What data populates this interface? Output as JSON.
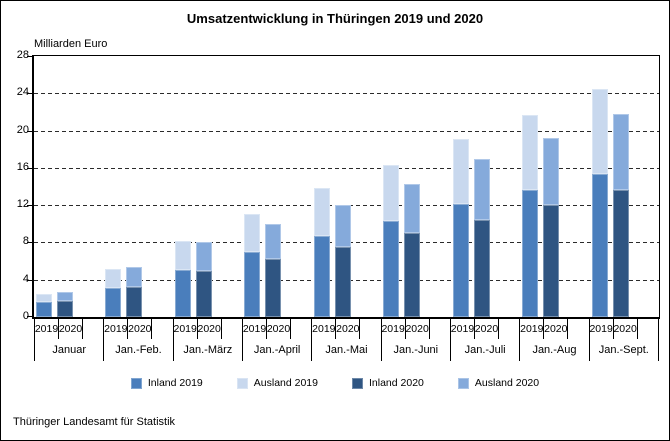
{
  "title": "Umsatzentwicklung in Thüringen 2019 und 2020",
  "footer": "Thüringer Landesamt für Statistik",
  "chart_data": {
    "type": "bar",
    "stacked": true,
    "grouped": true,
    "title": "Umsatzentwicklung in Thüringen 2019 und 2020",
    "ylabel": "Milliarden Euro",
    "ylim": [
      0,
      28
    ],
    "ytick_step": 4,
    "grid": "horizontal-dashed",
    "legend_position": "bottom",
    "categories": [
      "Januar",
      "Jan.-Feb.",
      "Jan.-März",
      "Jan.-April",
      "Jan.-Mai",
      "Jan.-Juni",
      "Jan.-Juli",
      "Jan.-Aug",
      "Jan.-Sept."
    ],
    "bar_labels": [
      "2019",
      "2020"
    ],
    "series": [
      {
        "name": "Inland 2019",
        "bar": "2019",
        "stack_order": "bottom",
        "color": "#4a7ebc",
        "values": [
          1.6,
          3.2,
          5.1,
          6.9,
          8.6,
          10.3,
          12.1,
          13.7,
          15.4
        ]
      },
      {
        "name": "Ausland 2019",
        "bar": "2019",
        "stack_order": "top",
        "color": "#c8d8ee",
        "values": [
          0.9,
          2.0,
          3.1,
          4.1,
          5.2,
          6.0,
          7.0,
          8.0,
          9.1
        ]
      },
      {
        "name": "Inland 2020",
        "bar": "2020",
        "stack_order": "bottom",
        "color": "#2f5582",
        "values": [
          1.7,
          3.3,
          4.9,
          6.2,
          7.5,
          9.0,
          10.5,
          12.0,
          13.6
        ]
      },
      {
        "name": "Ausland 2020",
        "bar": "2020",
        "stack_order": "top",
        "color": "#85aadb",
        "values": [
          1.0,
          2.1,
          3.1,
          3.8,
          4.5,
          5.3,
          6.5,
          7.2,
          8.2
        ]
      }
    ],
    "totals_2019": [
      2.5,
      5.2,
      8.2,
      11.0,
      13.8,
      16.3,
      19.1,
      21.7,
      24.5
    ],
    "totals_2020": [
      2.7,
      5.4,
      8.0,
      10.0,
      12.0,
      14.3,
      17.0,
      19.2,
      21.8
    ]
  }
}
